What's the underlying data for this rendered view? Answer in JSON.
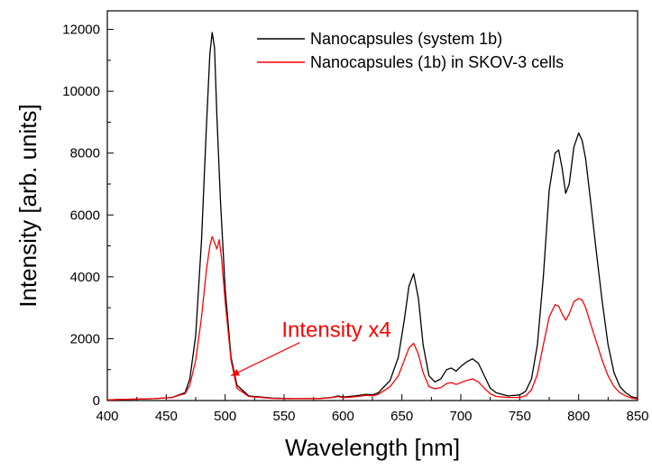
{
  "chart_data": {
    "type": "line",
    "xlabel": "Wavelength [nm]",
    "ylabel": "Intensity [arb. units]",
    "xlim": [
      400,
      850
    ],
    "ylim": [
      0,
      12600
    ],
    "xticks": [
      400,
      450,
      500,
      550,
      600,
      650,
      700,
      750,
      800,
      850
    ],
    "yticks": [
      0,
      2000,
      4000,
      6000,
      8000,
      10000,
      12000
    ],
    "grid": false,
    "legend_position": "top-right",
    "annotation": {
      "text": "Intensity x4",
      "color": "#ff0000",
      "target": [
        505,
        800
      ],
      "label_at": [
        548,
        2050
      ]
    },
    "series": [
      {
        "name": "Nanocapsules (system 1b)",
        "color": "#000000",
        "x": [
          400,
          440,
          455,
          462,
          466,
          470,
          475,
          480,
          484,
          487,
          489,
          491,
          493,
          496,
          500,
          505,
          510,
          520,
          540,
          560,
          580,
          590,
          596,
          600,
          610,
          620,
          625,
          630,
          640,
          647,
          652,
          656,
          660,
          664,
          668,
          673,
          678,
          683,
          688,
          692,
          696,
          700,
          705,
          710,
          715,
          720,
          725,
          730,
          740,
          750,
          755,
          760,
          765,
          770,
          775,
          780,
          783,
          786,
          789,
          792,
          796,
          800,
          803,
          806,
          810,
          815,
          820,
          825,
          830,
          835,
          840,
          845,
          850
        ],
        "y": [
          20,
          60,
          100,
          200,
          250,
          700,
          2100,
          5200,
          8800,
          11200,
          11900,
          11400,
          9200,
          6500,
          3600,
          1400,
          500,
          150,
          80,
          60,
          70,
          100,
          150,
          110,
          150,
          200,
          180,
          250,
          650,
          1400,
          2600,
          3700,
          4100,
          3300,
          1800,
          800,
          600,
          700,
          1000,
          1050,
          950,
          1100,
          1250,
          1350,
          1200,
          800,
          400,
          250,
          150,
          180,
          300,
          700,
          1800,
          4000,
          6800,
          8000,
          8100,
          7500,
          6700,
          7000,
          8200,
          8650,
          8400,
          7800,
          6500,
          4800,
          3200,
          1800,
          900,
          450,
          250,
          120,
          80
        ]
      },
      {
        "name": "Nanocapsules (1b) in SKOV-3 cells",
        "color": "#ff0000",
        "x": [
          400,
          440,
          455,
          462,
          466,
          470,
          475,
          480,
          484,
          487,
          489,
          491,
          493,
          495,
          497,
          500,
          505,
          510,
          520,
          540,
          560,
          580,
          590,
          596,
          600,
          610,
          620,
          625,
          630,
          640,
          647,
          652,
          656,
          660,
          664,
          668,
          673,
          678,
          683,
          688,
          692,
          696,
          700,
          705,
          710,
          715,
          720,
          725,
          730,
          740,
          750,
          755,
          760,
          765,
          770,
          775,
          780,
          783,
          786,
          789,
          792,
          796,
          800,
          803,
          806,
          810,
          815,
          820,
          825,
          830,
          835,
          840,
          845,
          850
        ],
        "y": [
          20,
          60,
          100,
          180,
          220,
          500,
          1300,
          2700,
          4200,
          5000,
          5300,
          5100,
          4900,
          5200,
          4600,
          3200,
          1300,
          400,
          130,
          70,
          60,
          60,
          90,
          130,
          90,
          120,
          170,
          150,
          200,
          450,
          800,
          1300,
          1700,
          1850,
          1500,
          900,
          450,
          380,
          420,
          550,
          580,
          520,
          580,
          650,
          700,
          600,
          400,
          220,
          130,
          100,
          100,
          150,
          350,
          850,
          1800,
          2700,
          3100,
          3050,
          2800,
          2600,
          2800,
          3200,
          3300,
          3250,
          3000,
          2500,
          1900,
          1300,
          800,
          450,
          250,
          150,
          80,
          50
        ]
      }
    ]
  }
}
